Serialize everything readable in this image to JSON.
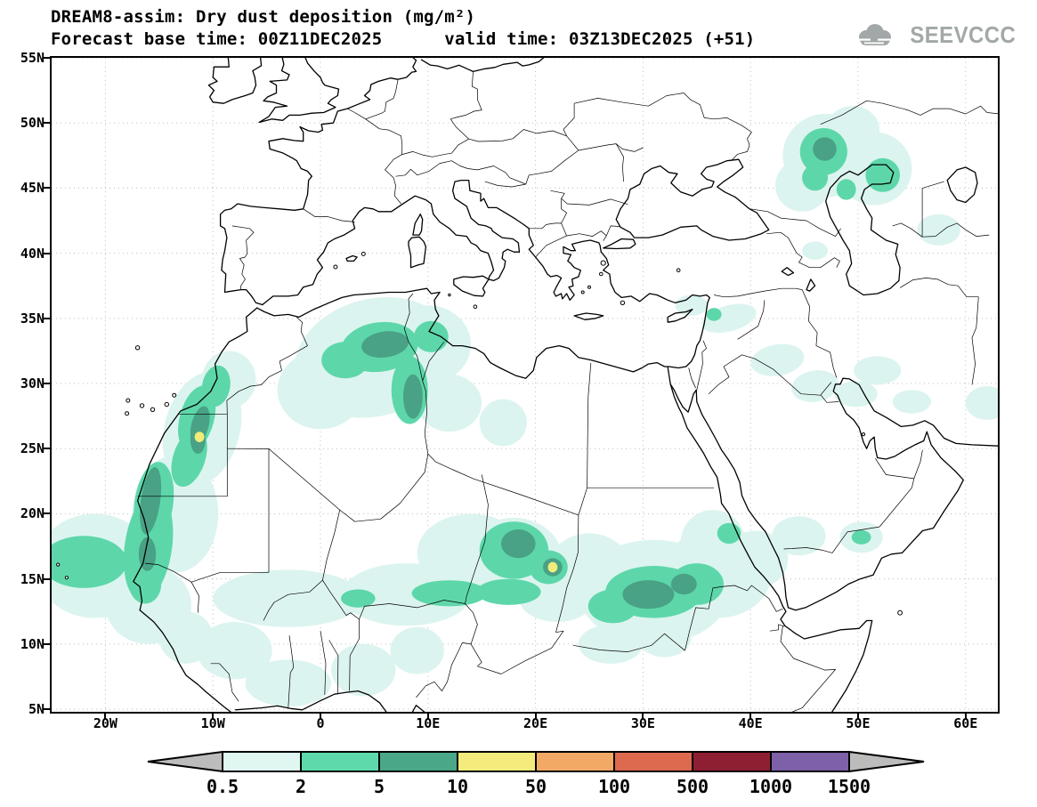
{
  "header": {
    "title": "DREAM8-assim: Dry dust deposition (mg/m²)",
    "subtitle": "Forecast base time: 00Z11DEC2025      valid time: 03Z13DEC2025 (+51)",
    "logo_text": "SEEVCCC"
  },
  "map": {
    "lat_ticks": [
      {
        "label": "55N",
        "lat": 55
      },
      {
        "label": "50N",
        "lat": 50
      },
      {
        "label": "45N",
        "lat": 45
      },
      {
        "label": "40N",
        "lat": 40
      },
      {
        "label": "35N",
        "lat": 35
      },
      {
        "label": "30N",
        "lat": 30
      },
      {
        "label": "25N",
        "lat": 25
      },
      {
        "label": "20N",
        "lat": 20
      },
      {
        "label": "15N",
        "lat": 15
      },
      {
        "label": "10N",
        "lat": 10
      },
      {
        "label": "5N",
        "lat": 5
      }
    ],
    "lon_ticks": [
      {
        "label": "20W",
        "lon": -20
      },
      {
        "label": "10W",
        "lon": -10
      },
      {
        "label": "0",
        "lon": 0
      },
      {
        "label": "10E",
        "lon": 10
      },
      {
        "label": "20E",
        "lon": 20
      },
      {
        "label": "30E",
        "lon": 30
      },
      {
        "label": "40E",
        "lon": 40
      },
      {
        "label": "50E",
        "lon": 50
      },
      {
        "label": "60E",
        "lon": 60
      }
    ],
    "lon_range": [
      -25,
      63
    ],
    "lat_range": [
      4.8,
      55
    ]
  },
  "legend": {
    "values": [
      "0.5",
      "2",
      "5",
      "10",
      "50",
      "100",
      "500",
      "1000",
      "1500"
    ],
    "colors": [
      "#dff6f1",
      "#5ed9ab",
      "#4aa788",
      "#f3ec7c",
      "#f2a966",
      "#dd6a4e",
      "#8e1f33",
      "#7e60a8"
    ],
    "arrow_color": "#bcbcbc"
  },
  "chart_data": {
    "type": "heatmap",
    "title": "DREAM8-assim: Dry dust deposition (mg/m²)",
    "units": "mg/m²",
    "forecast_base_time": "00Z11DEC2025",
    "valid_time": "03Z13DEC2025",
    "lead_hours": 51,
    "levels_mg_m2": [
      0.5,
      2,
      5,
      10,
      50,
      100,
      500,
      1000,
      1500
    ],
    "level_colors": {
      "1": "#dcf4ef",
      "2": "#5dd7aa",
      "3": "#49a285",
      "4": "#f2ec7b"
    },
    "lon_range": [
      -25,
      63
    ],
    "lat_range": [
      4.8,
      55
    ],
    "grid": "5 deg latitude / 10 deg longitude, dotted",
    "regions": [
      {
        "lon": -21,
        "lat": 16,
        "rx": 5.5,
        "ry": 4,
        "rot": 0,
        "lv": 1
      },
      {
        "lon": -16,
        "lat": 13,
        "rx": 4,
        "ry": 3,
        "rot": 0,
        "lv": 1
      },
      {
        "lon": -19.5,
        "lat": 14.5,
        "rx": 3,
        "ry": 2.5,
        "rot": 0,
        "lv": 1
      },
      {
        "lon": -13.5,
        "lat": 20,
        "rx": 4,
        "ry": 4.5,
        "rot": 0,
        "lv": 1
      },
      {
        "lon": -11,
        "lat": 26.5,
        "rx": 3.5,
        "ry": 4.5,
        "rot": 15,
        "lv": 1
      },
      {
        "lon": -8.5,
        "lat": 30.3,
        "rx": 2.5,
        "ry": 2.2,
        "rot": 0,
        "lv": 1
      },
      {
        "lon": -3,
        "lat": 13.5,
        "rx": 7,
        "ry": 2.2,
        "rot": 0,
        "lv": 1
      },
      {
        "lon": 8,
        "lat": 13.8,
        "rx": 6,
        "ry": 2.4,
        "rot": 0,
        "lv": 1
      },
      {
        "lon": 5,
        "lat": 32,
        "rx": 7.5,
        "ry": 4.5,
        "rot": -15,
        "lv": 1
      },
      {
        "lon": 0,
        "lat": 29.5,
        "rx": 4,
        "ry": 3,
        "rot": 0,
        "lv": 1
      },
      {
        "lon": 10,
        "lat": 33,
        "rx": 4,
        "ry": 3,
        "rot": 0,
        "lv": 1
      },
      {
        "lon": 12,
        "lat": 28.5,
        "rx": 3,
        "ry": 2.2,
        "rot": 0,
        "lv": 1
      },
      {
        "lon": 17,
        "lat": 27,
        "rx": 2.2,
        "ry": 1.8,
        "rot": 0,
        "lv": 1
      },
      {
        "lon": 14,
        "lat": 17,
        "rx": 5,
        "ry": 3,
        "rot": 0,
        "lv": 1
      },
      {
        "lon": 18,
        "lat": 16.5,
        "rx": 4.5,
        "ry": 3.2,
        "rot": 0,
        "lv": 1
      },
      {
        "lon": 22,
        "lat": 13.5,
        "rx": 3.5,
        "ry": 1.8,
        "rot": 0,
        "lv": 1
      },
      {
        "lon": 25,
        "lat": 15.5,
        "rx": 4,
        "ry": 3,
        "rot": 0,
        "lv": 1
      },
      {
        "lon": 31,
        "lat": 14,
        "rx": 7,
        "ry": 4,
        "rot": 0,
        "lv": 1
      },
      {
        "lon": 37,
        "lat": 15.5,
        "rx": 5,
        "ry": 3.5,
        "rot": 0,
        "lv": 1
      },
      {
        "lon": 36.5,
        "lat": 17.8,
        "rx": 3,
        "ry": 2.5,
        "rot": 0,
        "lv": 1
      },
      {
        "lon": 40.5,
        "lat": 16.5,
        "rx": 3,
        "ry": 2.2,
        "rot": 0,
        "lv": 1
      },
      {
        "lon": 27,
        "lat": 10,
        "rx": 3,
        "ry": 1.5,
        "rot": 0,
        "lv": 1
      },
      {
        "lon": 32,
        "lat": 10.5,
        "rx": 2.5,
        "ry": 1.5,
        "rot": 0,
        "lv": 1
      },
      {
        "lon": -8,
        "lat": 9.5,
        "rx": 3.5,
        "ry": 2.2,
        "rot": 0,
        "lv": 1
      },
      {
        "lon": -12.5,
        "lat": 10.5,
        "rx": 2.5,
        "ry": 2,
        "rot": 0,
        "lv": 1
      },
      {
        "lon": -3,
        "lat": 7,
        "rx": 4,
        "ry": 1.8,
        "rot": 0,
        "lv": 1
      },
      {
        "lon": 4,
        "lat": 8,
        "rx": 3,
        "ry": 2,
        "rot": 0,
        "lv": 1
      },
      {
        "lon": 9,
        "lat": 9.5,
        "rx": 2.5,
        "ry": 1.8,
        "rot": 0,
        "lv": 1
      },
      {
        "lon": 44.5,
        "lat": 18.3,
        "rx": 2.5,
        "ry": 1.5,
        "rot": 0,
        "lv": 1
      },
      {
        "lon": 50.3,
        "lat": 18.2,
        "rx": 2,
        "ry": 1.2,
        "rot": 0,
        "lv": 1
      },
      {
        "lon": 38,
        "lat": 35,
        "rx": 2.6,
        "ry": 1,
        "rot": -15,
        "lv": 1
      },
      {
        "lon": 34.5,
        "lat": 36,
        "rx": 1.5,
        "ry": 0.8,
        "rot": 0,
        "lv": 1
      },
      {
        "lon": 42.5,
        "lat": 31.8,
        "rx": 2.5,
        "ry": 1.2,
        "rot": -10,
        "lv": 1
      },
      {
        "lon": 46,
        "lat": 29.8,
        "rx": 2.2,
        "ry": 1.2,
        "rot": -10,
        "lv": 1
      },
      {
        "lon": 49.8,
        "lat": 29.2,
        "rx": 2,
        "ry": 1,
        "rot": 0,
        "lv": 1
      },
      {
        "lon": 51.8,
        "lat": 31,
        "rx": 2.2,
        "ry": 1.1,
        "rot": 0,
        "lv": 1
      },
      {
        "lon": 55,
        "lat": 28.6,
        "rx": 1.8,
        "ry": 0.9,
        "rot": 0,
        "lv": 1
      },
      {
        "lon": 62,
        "lat": 28.5,
        "rx": 2,
        "ry": 1.3,
        "rot": 0,
        "lv": 1
      },
      {
        "lon": 47,
        "lat": 47.5,
        "rx": 4,
        "ry": 3.2,
        "rot": 0,
        "lv": 1
      },
      {
        "lon": 51.5,
        "lat": 46.5,
        "rx": 3.5,
        "ry": 2.8,
        "rot": 0,
        "lv": 1
      },
      {
        "lon": 44.8,
        "lat": 45.2,
        "rx": 2.5,
        "ry": 2,
        "rot": 0,
        "lv": 1
      },
      {
        "lon": 49.5,
        "lat": 49.5,
        "rx": 2.5,
        "ry": 1.8,
        "rot": 0,
        "lv": 1
      },
      {
        "lon": 57.5,
        "lat": 41.8,
        "rx": 2,
        "ry": 1.2,
        "rot": 0,
        "lv": 1
      },
      {
        "lon": 46,
        "lat": 40.2,
        "rx": 1.2,
        "ry": 0.7,
        "rot": 0,
        "lv": 1
      },
      {
        "lon": -22,
        "lat": 16.3,
        "rx": 4,
        "ry": 2,
        "rot": 0,
        "lv": 2
      },
      {
        "lon": -16,
        "lat": 17.5,
        "rx": 2.2,
        "ry": 4.2,
        "rot": 8,
        "lv": 2
      },
      {
        "lon": -15.5,
        "lat": 20.8,
        "rx": 1.8,
        "ry": 3.2,
        "rot": 8,
        "lv": 2
      },
      {
        "lon": -16.3,
        "lat": 14.6,
        "rx": 1.5,
        "ry": 1.5,
        "rot": 0,
        "lv": 2
      },
      {
        "lon": -11.5,
        "lat": 27.3,
        "rx": 1.6,
        "ry": 2.6,
        "rot": 15,
        "lv": 2
      },
      {
        "lon": -12.2,
        "lat": 24.3,
        "rx": 1.5,
        "ry": 2.3,
        "rot": 18,
        "lv": 2
      },
      {
        "lon": -9.7,
        "lat": 29.8,
        "rx": 1.3,
        "ry": 1.6,
        "rot": 10,
        "lv": 2
      },
      {
        "lon": 5.5,
        "lat": 32.8,
        "rx": 3.6,
        "ry": 1.9,
        "rot": -8,
        "lv": 2
      },
      {
        "lon": 2.3,
        "lat": 31.8,
        "rx": 2.2,
        "ry": 1.4,
        "rot": 0,
        "lv": 2
      },
      {
        "lon": 8.3,
        "lat": 29.5,
        "rx": 1.7,
        "ry": 2.6,
        "rot": 0,
        "lv": 2
      },
      {
        "lon": 10.3,
        "lat": 33.6,
        "rx": 1.6,
        "ry": 1.2,
        "rot": 0,
        "lv": 2
      },
      {
        "lon": 12,
        "lat": 13.9,
        "rx": 3.5,
        "ry": 1,
        "rot": 0,
        "lv": 2
      },
      {
        "lon": 17.5,
        "lat": 14,
        "rx": 3,
        "ry": 1,
        "rot": 0,
        "lv": 2
      },
      {
        "lon": 3.5,
        "lat": 13.5,
        "rx": 1.6,
        "ry": 0.7,
        "rot": 0,
        "lv": 2
      },
      {
        "lon": 18,
        "lat": 17.2,
        "rx": 3.2,
        "ry": 2.2,
        "rot": 0,
        "lv": 2
      },
      {
        "lon": 21.2,
        "lat": 15.9,
        "rx": 1.8,
        "ry": 1.3,
        "rot": 0,
        "lv": 2
      },
      {
        "lon": 31,
        "lat": 14,
        "rx": 4.5,
        "ry": 2,
        "rot": 0,
        "lv": 2
      },
      {
        "lon": 35,
        "lat": 14.6,
        "rx": 2.5,
        "ry": 1.6,
        "rot": 0,
        "lv": 2
      },
      {
        "lon": 27.2,
        "lat": 12.9,
        "rx": 2.3,
        "ry": 1.3,
        "rot": 0,
        "lv": 2
      },
      {
        "lon": 38,
        "lat": 18.5,
        "rx": 1.1,
        "ry": 0.8,
        "rot": 0,
        "lv": 2
      },
      {
        "lon": 50.3,
        "lat": 18.2,
        "rx": 0.9,
        "ry": 0.55,
        "rot": 0,
        "lv": 2
      },
      {
        "lon": 36.6,
        "lat": 35.3,
        "rx": 0.7,
        "ry": 0.5,
        "rot": 0,
        "lv": 2
      },
      {
        "lon": 46.8,
        "lat": 47.8,
        "rx": 2.2,
        "ry": 1.8,
        "rot": 0,
        "lv": 2
      },
      {
        "lon": 46,
        "lat": 45.8,
        "rx": 1.2,
        "ry": 1,
        "rot": 0,
        "lv": 2
      },
      {
        "lon": 52.3,
        "lat": 46,
        "rx": 1.6,
        "ry": 1.3,
        "rot": 0,
        "lv": 2
      },
      {
        "lon": 48.9,
        "lat": 44.9,
        "rx": 0.9,
        "ry": 0.8,
        "rot": 0,
        "lv": 2
      },
      {
        "lon": -15.8,
        "lat": 21,
        "rx": 0.9,
        "ry": 2.6,
        "rot": 8,
        "lv": 3
      },
      {
        "lon": -16.1,
        "lat": 16.9,
        "rx": 0.8,
        "ry": 1.3,
        "rot": 0,
        "lv": 3
      },
      {
        "lon": -11.2,
        "lat": 26.8,
        "rx": 0.8,
        "ry": 1.5,
        "rot": 15,
        "lv": 3
      },
      {
        "lon": -11.4,
        "lat": 25.7,
        "rx": 0.7,
        "ry": 1.1,
        "rot": 0,
        "lv": 3
      },
      {
        "lon": 6,
        "lat": 33,
        "rx": 2.2,
        "ry": 1,
        "rot": -8,
        "lv": 3
      },
      {
        "lon": 8.6,
        "lat": 29,
        "rx": 0.9,
        "ry": 1.7,
        "rot": 0,
        "lv": 3
      },
      {
        "lon": 18.4,
        "lat": 17.7,
        "rx": 1.6,
        "ry": 1.1,
        "rot": 0,
        "lv": 3
      },
      {
        "lon": 21.6,
        "lat": 15.9,
        "rx": 0.9,
        "ry": 0.7,
        "rot": 0,
        "lv": 3
      },
      {
        "lon": 30.5,
        "lat": 13.8,
        "rx": 2.4,
        "ry": 1.1,
        "rot": 0,
        "lv": 3
      },
      {
        "lon": 33.8,
        "lat": 14.6,
        "rx": 1.2,
        "ry": 0.8,
        "rot": 0,
        "lv": 3
      },
      {
        "lon": 46.9,
        "lat": 48,
        "rx": 1.1,
        "ry": 0.9,
        "rot": 0,
        "lv": 3
      },
      {
        "lon": -11.25,
        "lat": 25.9,
        "rx": 0.45,
        "ry": 0.4,
        "rot": 0,
        "lv": 4
      },
      {
        "lon": 21.6,
        "lat": 15.9,
        "rx": 0.45,
        "ry": 0.4,
        "rot": 0,
        "lv": 4
      }
    ]
  }
}
